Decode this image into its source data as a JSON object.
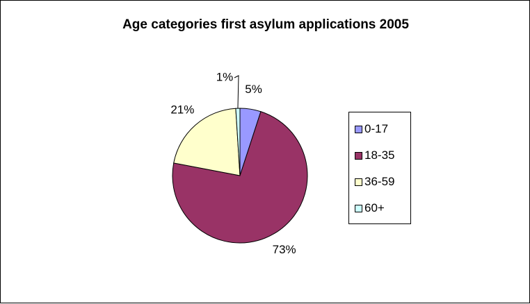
{
  "chart_data": {
    "type": "pie",
    "title": "Age categories first asylum applications 2005",
    "categories": [
      "0-17",
      "18-35",
      "36-59",
      "60+"
    ],
    "values": [
      5,
      73,
      21,
      1
    ],
    "labels": [
      "5%",
      "73%",
      "21%",
      "1%"
    ],
    "colors": [
      "#9999ff",
      "#993366",
      "#ffffcc",
      "#ccffff"
    ],
    "legend_placement": "right"
  }
}
